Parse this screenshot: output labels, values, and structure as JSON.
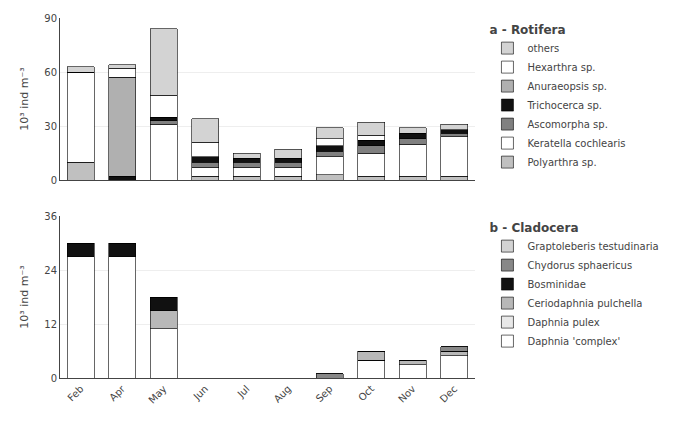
{
  "chart_data": [
    {
      "type": "bar",
      "stacked": true,
      "title": "a - Rotifera",
      "categories": [
        "Feb",
        "Apr",
        "May",
        "Jun",
        "Jul",
        "Aug",
        "Sep",
        "Oct",
        "Nov",
        "Dec"
      ],
      "series": [
        {
          "name": "Polyarthra sp.",
          "color": "#c0c0c0",
          "values": [
            10,
            0,
            0,
            2,
            2,
            2,
            3,
            2,
            2,
            2
          ]
        },
        {
          "name": "Keratella cochlearis",
          "color": "#ffffff",
          "values": [
            50,
            0,
            31,
            5,
            5,
            5,
            10,
            13,
            18,
            22
          ]
        },
        {
          "name": "Ascomorpha sp.",
          "color": "#808080",
          "values": [
            0,
            0,
            2,
            3,
            3,
            3,
            3,
            4,
            3,
            2
          ]
        },
        {
          "name": "Trichocerca sp.",
          "color": "#111111",
          "values": [
            0,
            2,
            2,
            3,
            2,
            2,
            3,
            3,
            3,
            2
          ]
        },
        {
          "name": "Anuraeopsis sp.",
          "color": "#b0b0b0",
          "values": [
            0,
            55,
            0,
            0,
            0,
            0,
            0,
            0,
            0,
            0
          ]
        },
        {
          "name": "Hexarthra sp.",
          "color": "#ffffff",
          "values": [
            0,
            5,
            12,
            8,
            0,
            0,
            4,
            3,
            0,
            0
          ]
        },
        {
          "name": "others",
          "color": "#d3d3d3",
          "values": [
            3,
            2,
            37,
            13,
            3,
            5,
            6,
            7,
            3,
            3
          ]
        }
      ],
      "ylabel": "10³ ind m⁻³",
      "ylim": [
        0,
        90
      ],
      "yticks": [
        0,
        30,
        60,
        90
      ],
      "grid": true,
      "legend": "right",
      "tick_labels": "y"
    },
    {
      "type": "bar",
      "stacked": true,
      "title": "b - Cladocera",
      "categories": [
        "Feb",
        "Apr",
        "May",
        "Jun",
        "Jul",
        "Aug",
        "Sep",
        "Oct",
        "Nov",
        "Dec"
      ],
      "series": [
        {
          "name": "Daphnia 'complex'",
          "color": "#ffffff",
          "values": [
            27,
            27,
            11,
            0,
            0,
            0,
            0,
            4,
            3,
            5
          ]
        },
        {
          "name": "Daphnia pulex",
          "color": "#e8e8e8",
          "values": [
            0,
            0,
            0,
            0,
            0,
            0,
            0,
            0,
            0,
            0
          ]
        },
        {
          "name": "Ceriodaphnia pulchella",
          "color": "#b8b8b8",
          "values": [
            0,
            0,
            4,
            0,
            0,
            0,
            0,
            2,
            1,
            1
          ]
        },
        {
          "name": "Bosminidae",
          "color": "#111111",
          "values": [
            3,
            3,
            3,
            0,
            0,
            0,
            0,
            0,
            0,
            0
          ]
        },
        {
          "name": "Chydorus sphaericus",
          "color": "#888888",
          "values": [
            0,
            0,
            0,
            0,
            0,
            0,
            1,
            0,
            0,
            1
          ]
        },
        {
          "name": "Graptoleberis testudinaria",
          "color": "#d3d3d3",
          "values": [
            0,
            0,
            0,
            0,
            0,
            0,
            0,
            0,
            0,
            0
          ]
        }
      ],
      "ylabel": "10³ ind m⁻³",
      "ylim": [
        0,
        36
      ],
      "yticks": [
        0,
        12,
        24,
        36
      ],
      "grid": true,
      "legend": "right"
    }
  ]
}
